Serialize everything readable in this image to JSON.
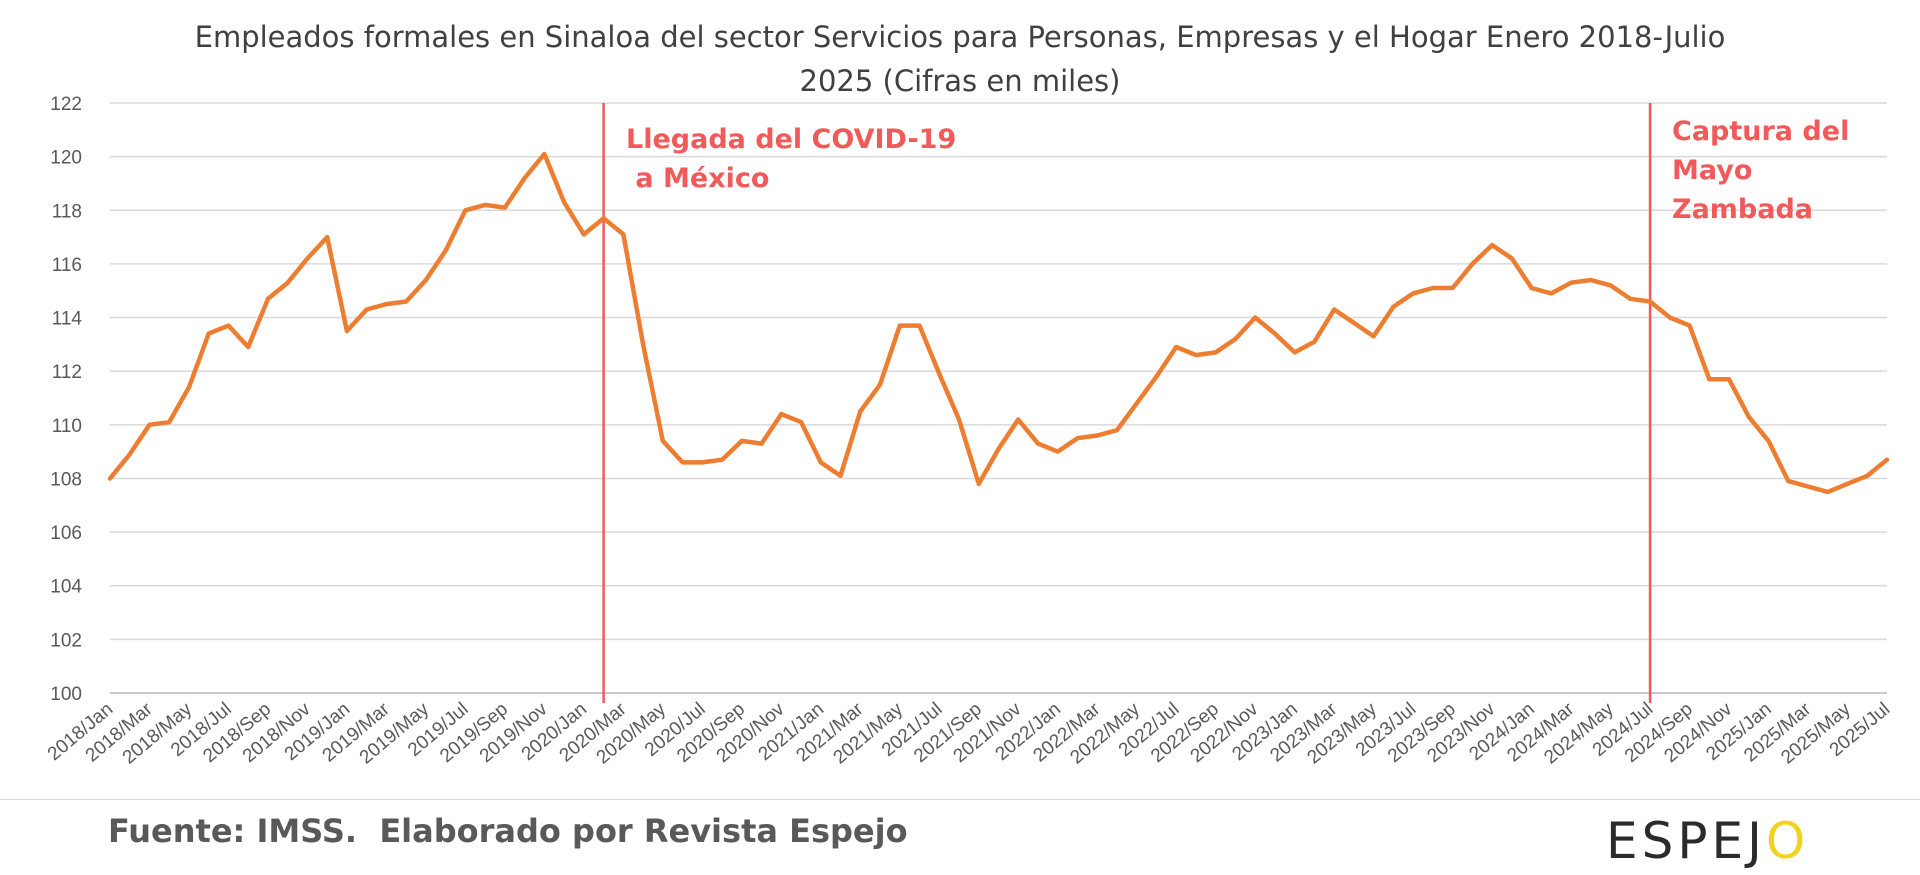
{
  "chart_data": {
    "type": "line",
    "title": "Empleados formales en Sinaloa del sector Servicios para Personas, Empresas y el Hogar Enero 2018-Julio 2025 (Cifras en miles)",
    "title_lines": [
      "Empleados formales en Sinaloa del sector Servicios para Personas, Empresas y el Hogar Enero 2018-Julio",
      "2025 (Cifras en miles)"
    ],
    "xlabel": "",
    "ylabel": "",
    "ylim": [
      100,
      122
    ],
    "yticks": [
      "100",
      "102",
      "104",
      "106",
      "108",
      "110",
      "112",
      "114",
      "116",
      "118",
      "120",
      "122"
    ],
    "grid": true,
    "legend": "none",
    "series_color": "#ed7d31",
    "x": [
      "2018/Jan",
      "2018/Feb",
      "2018/Mar",
      "2018/Apr",
      "2018/May",
      "2018/Jun",
      "2018/Jul",
      "2018/Aug",
      "2018/Sep",
      "2018/Oct",
      "2018/Nov",
      "2018/Dec",
      "2019/Jan",
      "2019/Feb",
      "2019/Mar",
      "2019/Apr",
      "2019/May",
      "2019/Jun",
      "2019/Jul",
      "2019/Aug",
      "2019/Sep",
      "2019/Oct",
      "2019/Nov",
      "2019/Dec",
      "2020/Jan",
      "2020/Feb",
      "2020/Mar",
      "2020/Apr",
      "2020/May",
      "2020/Jun",
      "2020/Jul",
      "2020/Aug",
      "2020/Sep",
      "2020/Oct",
      "2020/Nov",
      "2020/Dec",
      "2021/Jan",
      "2021/Feb",
      "2021/Mar",
      "2021/Apr",
      "2021/May",
      "2021/Jun",
      "2021/Jul",
      "2021/Aug",
      "2021/Sep",
      "2021/Oct",
      "2021/Nov",
      "2021/Dec",
      "2022/Jan",
      "2022/Feb",
      "2022/Mar",
      "2022/Apr",
      "2022/May",
      "2022/Jun",
      "2022/Jul",
      "2022/Aug",
      "2022/Sep",
      "2022/Oct",
      "2022/Nov",
      "2022/Dec",
      "2023/Jan",
      "2023/Feb",
      "2023/Mar",
      "2023/Apr",
      "2023/May",
      "2023/Jun",
      "2023/Jul",
      "2023/Aug",
      "2023/Sep",
      "2023/Oct",
      "2023/Nov",
      "2023/Dec",
      "2024/Jan",
      "2024/Feb",
      "2024/Mar",
      "2024/Apr",
      "2024/May",
      "2024/Jun",
      "2024/Jul",
      "2024/Aug",
      "2024/Sep",
      "2024/Oct",
      "2024/Nov",
      "2024/Dec",
      "2025/Jan",
      "2025/Feb",
      "2025/Mar",
      "2025/Apr",
      "2025/May",
      "2025/Jun",
      "2025/Jul"
    ],
    "xtick_labels": [
      "2018/Jan",
      "2018/Mar",
      "2018/May",
      "2018/Jul",
      "2018/Sep",
      "2018/Nov",
      "2019/Jan",
      "2019/Mar",
      "2019/May",
      "2019/Jul",
      "2019/Sep",
      "2019/Nov",
      "2020/Jan",
      "2020/Mar",
      "2020/May",
      "2020/Jul",
      "2020/Sep",
      "2020/Nov",
      "2021/Jan",
      "2021/Mar",
      "2021/May",
      "2021/Jul",
      "2021/Sep",
      "2021/Nov",
      "2022/Jan",
      "2022/Mar",
      "2022/May",
      "2022/Jul",
      "2022/Sep",
      "2022/Nov",
      "2023/Jan",
      "2023/Mar",
      "2023/May",
      "2023/Jul",
      "2023/Sep",
      "2023/Nov",
      "2024/Jan",
      "2024/Mar",
      "2024/May",
      "2024/Jul",
      "2024/Sep",
      "2024/Nov",
      "2025/Jan",
      "2025/Mar",
      "2025/May",
      "2025/Jul"
    ],
    "values": [
      108.0,
      108.9,
      110.0,
      110.1,
      111.4,
      113.4,
      113.7,
      112.9,
      114.7,
      115.3,
      116.2,
      117.0,
      113.5,
      114.3,
      114.5,
      114.6,
      115.4,
      116.5,
      118.0,
      118.2,
      118.1,
      119.2,
      120.1,
      118.3,
      117.1,
      117.7,
      117.1,
      113.0,
      109.4,
      108.6,
      108.6,
      108.7,
      109.4,
      109.3,
      110.4,
      110.1,
      108.6,
      108.1,
      110.5,
      111.5,
      113.7,
      113.7,
      111.9,
      110.2,
      107.8,
      109.1,
      110.2,
      109.3,
      109.0,
      109.5,
      109.6,
      109.8,
      110.8,
      111.8,
      112.9,
      112.6,
      112.7,
      113.2,
      114.0,
      113.4,
      112.7,
      113.1,
      114.3,
      113.8,
      113.3,
      114.4,
      114.9,
      115.1,
      115.1,
      116.0,
      116.7,
      116.2,
      115.1,
      114.9,
      115.3,
      115.4,
      115.2,
      114.7,
      114.6,
      114.0,
      113.7,
      111.7,
      111.7,
      110.3,
      109.4,
      107.9,
      107.7,
      107.5,
      107.8,
      108.1,
      108.7
    ],
    "annotations": [
      {
        "text": "Llegada del COVID-19\n a México",
        "x": "2020/Feb",
        "color": "#f05a5a"
      },
      {
        "text": "Captura del\nMayo\nZambada",
        "x": "2024/Jul",
        "color": "#f05a5a"
      }
    ]
  },
  "footer": {
    "source": "Fuente: IMSS.  Elaborado por Revista Espejo",
    "logo_prefix": "ESPEJ",
    "logo_suffix": "O"
  }
}
